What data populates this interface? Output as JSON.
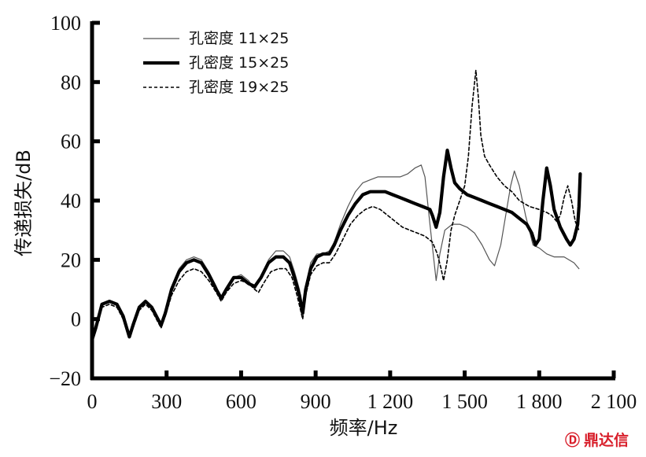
{
  "chart_data": {
    "type": "line",
    "xlabel": "频率/Hz",
    "ylabel": "传递损失/dB",
    "xlim": [
      0,
      2100
    ],
    "ylim": [
      -20,
      100
    ],
    "x_ticks": [
      0,
      300,
      600,
      900,
      1200,
      1500,
      1800,
      2100
    ],
    "x_tick_labels": [
      "0",
      "300",
      "600",
      "900",
      "1 200",
      "1 500",
      "1 800",
      "2 100"
    ],
    "y_ticks": [
      -20,
      0,
      20,
      40,
      60,
      80,
      100
    ],
    "y_tick_labels": [
      "−20",
      "0",
      "20",
      "40",
      "60",
      "80",
      "100"
    ],
    "grid": false,
    "legend_position": "top-left",
    "series": [
      {
        "name": "孔密度 11×25",
        "style": "thin",
        "color": "#555555",
        "points": [
          [
            0,
            -8
          ],
          [
            15,
            -3
          ],
          [
            40,
            5
          ],
          [
            70,
            6
          ],
          [
            100,
            5
          ],
          [
            125,
            1
          ],
          [
            150,
            -6
          ],
          [
            165,
            -2
          ],
          [
            190,
            4
          ],
          [
            215,
            6
          ],
          [
            240,
            4
          ],
          [
            265,
            0
          ],
          [
            278,
            -3
          ],
          [
            295,
            2
          ],
          [
            320,
            11
          ],
          [
            350,
            17
          ],
          [
            380,
            20
          ],
          [
            410,
            21
          ],
          [
            440,
            20
          ],
          [
            470,
            16
          ],
          [
            500,
            11
          ],
          [
            520,
            7
          ],
          [
            540,
            10
          ],
          [
            570,
            14
          ],
          [
            600,
            15
          ],
          [
            630,
            13
          ],
          [
            655,
            10
          ],
          [
            680,
            14
          ],
          [
            710,
            20
          ],
          [
            740,
            23
          ],
          [
            770,
            23
          ],
          [
            795,
            21
          ],
          [
            815,
            16
          ],
          [
            835,
            10
          ],
          [
            848,
            3
          ],
          [
            860,
            11
          ],
          [
            880,
            19
          ],
          [
            905,
            22
          ],
          [
            930,
            22
          ],
          [
            955,
            23
          ],
          [
            975,
            26
          ],
          [
            1000,
            32
          ],
          [
            1030,
            38
          ],
          [
            1060,
            43
          ],
          [
            1090,
            46
          ],
          [
            1120,
            47
          ],
          [
            1150,
            48
          ],
          [
            1180,
            48
          ],
          [
            1210,
            48
          ],
          [
            1240,
            48
          ],
          [
            1270,
            49
          ],
          [
            1300,
            51
          ],
          [
            1325,
            52
          ],
          [
            1340,
            48
          ],
          [
            1360,
            32
          ],
          [
            1385,
            13
          ],
          [
            1400,
            22
          ],
          [
            1420,
            30
          ],
          [
            1450,
            32
          ],
          [
            1480,
            32
          ],
          [
            1510,
            31
          ],
          [
            1540,
            29
          ],
          [
            1570,
            25
          ],
          [
            1600,
            20
          ],
          [
            1620,
            18
          ],
          [
            1645,
            25
          ],
          [
            1665,
            35
          ],
          [
            1685,
            45
          ],
          [
            1700,
            50
          ],
          [
            1720,
            45
          ],
          [
            1745,
            35
          ],
          [
            1775,
            25
          ],
          [
            1800,
            24
          ],
          [
            1830,
            22
          ],
          [
            1860,
            21
          ],
          [
            1900,
            21
          ],
          [
            1940,
            19
          ],
          [
            1960,
            17
          ]
        ]
      },
      {
        "name": "孔密度 15×25",
        "style": "thick",
        "color": "#000000",
        "points": [
          [
            0,
            -7
          ],
          [
            15,
            -3
          ],
          [
            40,
            5
          ],
          [
            70,
            6
          ],
          [
            100,
            5
          ],
          [
            125,
            1
          ],
          [
            150,
            -6
          ],
          [
            165,
            -2
          ],
          [
            190,
            4
          ],
          [
            215,
            6
          ],
          [
            240,
            4
          ],
          [
            265,
            0
          ],
          [
            278,
            -2
          ],
          [
            295,
            2
          ],
          [
            320,
            10
          ],
          [
            350,
            16
          ],
          [
            380,
            19
          ],
          [
            410,
            20
          ],
          [
            440,
            19
          ],
          [
            470,
            15
          ],
          [
            500,
            10
          ],
          [
            520,
            7
          ],
          [
            540,
            10
          ],
          [
            570,
            14
          ],
          [
            600,
            14
          ],
          [
            630,
            12
          ],
          [
            655,
            11
          ],
          [
            680,
            14
          ],
          [
            710,
            19
          ],
          [
            740,
            21
          ],
          [
            770,
            21
          ],
          [
            795,
            19
          ],
          [
            815,
            14
          ],
          [
            835,
            8
          ],
          [
            848,
            2
          ],
          [
            860,
            10
          ],
          [
            880,
            17
          ],
          [
            905,
            21
          ],
          [
            930,
            22
          ],
          [
            955,
            22
          ],
          [
            975,
            25
          ],
          [
            1000,
            30
          ],
          [
            1030,
            35
          ],
          [
            1060,
            39
          ],
          [
            1090,
            42
          ],
          [
            1120,
            43
          ],
          [
            1150,
            43
          ],
          [
            1180,
            43
          ],
          [
            1210,
            42
          ],
          [
            1240,
            41
          ],
          [
            1270,
            40
          ],
          [
            1300,
            39
          ],
          [
            1330,
            38
          ],
          [
            1360,
            37
          ],
          [
            1370,
            35
          ],
          [
            1385,
            31
          ],
          [
            1400,
            36
          ],
          [
            1415,
            48
          ],
          [
            1430,
            57
          ],
          [
            1445,
            51
          ],
          [
            1460,
            46
          ],
          [
            1480,
            44
          ],
          [
            1510,
            42
          ],
          [
            1540,
            41
          ],
          [
            1570,
            40
          ],
          [
            1600,
            39
          ],
          [
            1630,
            38
          ],
          [
            1660,
            37
          ],
          [
            1690,
            36
          ],
          [
            1720,
            34
          ],
          [
            1750,
            32
          ],
          [
            1770,
            29
          ],
          [
            1785,
            25
          ],
          [
            1800,
            27
          ],
          [
            1815,
            40
          ],
          [
            1830,
            51
          ],
          [
            1845,
            45
          ],
          [
            1860,
            37
          ],
          [
            1885,
            31
          ],
          [
            1910,
            27
          ],
          [
            1925,
            25
          ],
          [
            1940,
            27
          ],
          [
            1955,
            32
          ],
          [
            1960,
            38
          ],
          [
            1965,
            49
          ]
        ]
      },
      {
        "name": "孔密度 19×25",
        "style": "dotted",
        "color": "#000000",
        "points": [
          [
            0,
            -7
          ],
          [
            15,
            -3
          ],
          [
            40,
            4
          ],
          [
            70,
            5
          ],
          [
            100,
            4
          ],
          [
            125,
            0
          ],
          [
            150,
            -6
          ],
          [
            165,
            -3
          ],
          [
            190,
            3
          ],
          [
            215,
            5
          ],
          [
            240,
            3
          ],
          [
            265,
            -1
          ],
          [
            278,
            -3
          ],
          [
            295,
            1
          ],
          [
            320,
            8
          ],
          [
            350,
            13
          ],
          [
            380,
            16
          ],
          [
            410,
            17
          ],
          [
            440,
            16
          ],
          [
            470,
            13
          ],
          [
            500,
            9
          ],
          [
            520,
            6
          ],
          [
            540,
            9
          ],
          [
            570,
            12
          ],
          [
            600,
            13
          ],
          [
            630,
            12
          ],
          [
            655,
            10
          ],
          [
            670,
            9
          ],
          [
            690,
            12
          ],
          [
            720,
            16
          ],
          [
            750,
            17
          ],
          [
            780,
            17
          ],
          [
            805,
            14
          ],
          [
            825,
            8
          ],
          [
            848,
            0
          ],
          [
            860,
            8
          ],
          [
            880,
            15
          ],
          [
            905,
            18
          ],
          [
            930,
            19
          ],
          [
            955,
            19
          ],
          [
            980,
            22
          ],
          [
            1010,
            27
          ],
          [
            1040,
            32
          ],
          [
            1070,
            35
          ],
          [
            1100,
            37
          ],
          [
            1130,
            38
          ],
          [
            1160,
            37
          ],
          [
            1190,
            35
          ],
          [
            1220,
            33
          ],
          [
            1250,
            31
          ],
          [
            1280,
            30
          ],
          [
            1310,
            29
          ],
          [
            1340,
            28
          ],
          [
            1370,
            26
          ],
          [
            1390,
            22
          ],
          [
            1405,
            17
          ],
          [
            1415,
            13
          ],
          [
            1430,
            20
          ],
          [
            1445,
            30
          ],
          [
            1460,
            35
          ],
          [
            1480,
            40
          ],
          [
            1500,
            45
          ],
          [
            1515,
            55
          ],
          [
            1530,
            72
          ],
          [
            1545,
            84
          ],
          [
            1555,
            75
          ],
          [
            1565,
            62
          ],
          [
            1580,
            55
          ],
          [
            1600,
            52
          ],
          [
            1630,
            48
          ],
          [
            1660,
            45
          ],
          [
            1690,
            43
          ],
          [
            1720,
            40
          ],
          [
            1760,
            38
          ],
          [
            1800,
            37
          ],
          [
            1830,
            36
          ],
          [
            1850,
            35
          ],
          [
            1870,
            33
          ],
          [
            1885,
            35
          ],
          [
            1900,
            41
          ],
          [
            1915,
            45
          ],
          [
            1930,
            40
          ],
          [
            1945,
            33
          ],
          [
            1960,
            30
          ]
        ]
      }
    ]
  },
  "watermark": {
    "glyph": "Ⓓ",
    "text": "鼎达信",
    "color": "#d81e2a"
  }
}
